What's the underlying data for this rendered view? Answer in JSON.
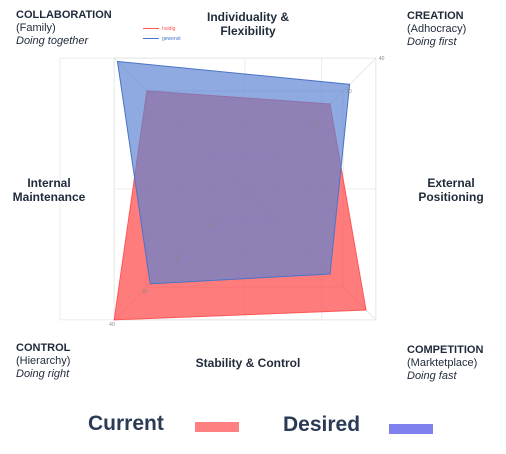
{
  "corners": {
    "tl": {
      "title": "COLLABORATION",
      "sub": "(Family)",
      "italic": "Doing together"
    },
    "tr": {
      "title": "CREATION",
      "sub": "(Adhocracy)",
      "italic": "Doing first"
    },
    "bl": {
      "title": "CONTROL",
      "sub": "(Hierarchy)",
      "italic": "Doing right"
    },
    "br": {
      "title": "COMPETITION",
      "sub": "(Marktetplace)",
      "italic": "Doing fast"
    }
  },
  "axes": {
    "top_line1": "Individuality &",
    "top_line2": "Flexibility",
    "left_line1": "Internal",
    "left_line2": "Maintenance",
    "right_line1": "External",
    "right_line2": "Positioning",
    "bottom": "Stability & Control"
  },
  "legend": {
    "current_label": "Current",
    "desired_label": "Desired",
    "current_color": "#ff8080",
    "desired_color": "#8080ee"
  },
  "mini_legend": {
    "current": "huidig",
    "desired": "gewenst"
  },
  "chart_data": {
    "type": "radar",
    "axes": [
      "CREATION",
      "COMPETITION",
      "CONTROL",
      "COLLABORATION"
    ],
    "rmax": 40,
    "grid_values": [
      10,
      20,
      30,
      40
    ],
    "tick_labels_tr": [
      "20",
      "30",
      "40"
    ],
    "tick_labels_bl": [
      "10",
      "20",
      "30",
      "40"
    ],
    "series": [
      {
        "name": "Current",
        "color": "#ff5555",
        "fill": "rgba(255,80,80,0.75)",
        "values": [
          26,
          37,
          40,
          30
        ]
      },
      {
        "name": "Desired",
        "color": "#4a74c8",
        "fill": "rgba(90,130,210,0.68)",
        "values": [
          32,
          26,
          29,
          39
        ]
      }
    ]
  }
}
